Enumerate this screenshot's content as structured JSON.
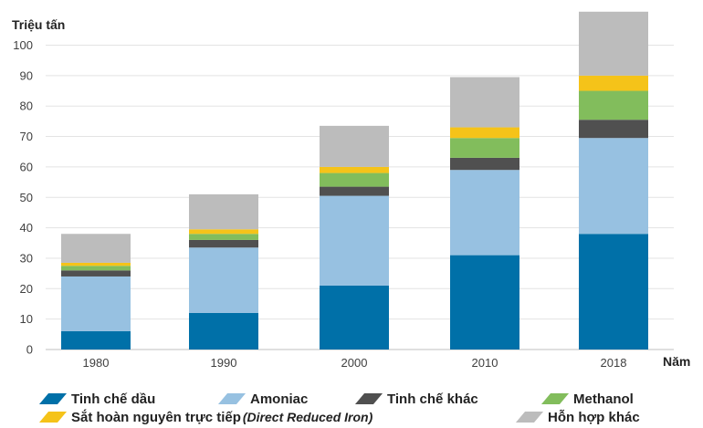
{
  "chart_data": {
    "type": "bar",
    "stacked": true,
    "ylabel": "Triệu tấn",
    "xlabel": "Năm",
    "ylim": [
      0,
      110
    ],
    "yticks": [
      0,
      10,
      20,
      30,
      40,
      50,
      60,
      70,
      80,
      90,
      100
    ],
    "grid": true,
    "legend_position": "bottom",
    "categories": [
      "1980",
      "1990",
      "2000",
      "2010",
      "2018"
    ],
    "series": [
      {
        "name": "Tinh chế dầu",
        "color": "#0070A8",
        "values": [
          6,
          12,
          21,
          31,
          38
        ]
      },
      {
        "name": "Amoniac",
        "color": "#97C1E1",
        "values": [
          18,
          21.5,
          29.5,
          28,
          31.5
        ]
      },
      {
        "name": "Tinh chế khác",
        "color": "#505050",
        "values": [
          2,
          2.5,
          3,
          4,
          6
        ]
      },
      {
        "name": "Methanol",
        "color": "#82BD5C",
        "values": [
          1.5,
          2,
          4.5,
          6.5,
          9.5
        ]
      },
      {
        "name": "Sắt hoàn nguyên trực tiếp",
        "name_suffix": "(Direct Reduced Iron)",
        "color": "#F5C319",
        "values": [
          1,
          1.5,
          2,
          3.5,
          5
        ]
      },
      {
        "name": "Hỗn hợp khác",
        "color": "#BCBCBC",
        "values": [
          9.5,
          11.5,
          13.5,
          16.5,
          21
        ]
      }
    ]
  }
}
